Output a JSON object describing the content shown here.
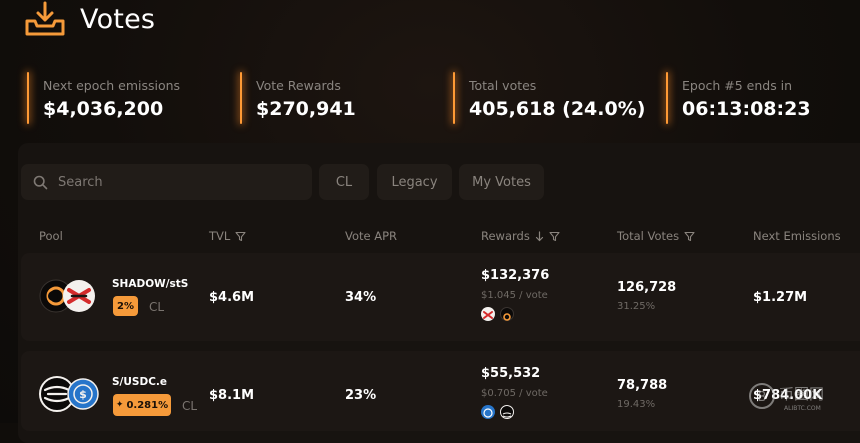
{
  "header": {
    "title": "Votes"
  },
  "stats": [
    {
      "label": "Next epoch emissions",
      "value": "$4,036,200"
    },
    {
      "label": "Vote Rewards",
      "value": "$270,941"
    },
    {
      "label": "Total votes",
      "value": "405,618 (24.0%)"
    },
    {
      "label": "Epoch #5 ends in",
      "value": "06:13:08:23"
    }
  ],
  "search": {
    "placeholder": "Search"
  },
  "filters": [
    "CL",
    "Legacy",
    "My Votes"
  ],
  "columns": {
    "pool": "Pool",
    "tvl": "TVL",
    "vote_apr": "Vote APR",
    "rewards": "Rewards",
    "total_votes": "Total Votes",
    "next_emissions": "Next Emissions"
  },
  "rows": [
    {
      "pool": "SHADOW/stS",
      "fee": "2%",
      "type": "CL",
      "tvl": "$4.6M",
      "apr": "34%",
      "rewards": "$132,376",
      "per_vote": "$1.045 / vote",
      "votes": "126,728",
      "votes_pct": "31.25%",
      "emissions": "$1.27M"
    },
    {
      "pool": "S/USDC.e",
      "fee": "0.281%",
      "type": "CL",
      "tvl": "$8.1M",
      "apr": "23%",
      "rewards": "$55,532",
      "per_vote": "$0.705 / vote",
      "votes": "78,788",
      "votes_pct": "19.43%",
      "emissions": "$784.00K"
    }
  ],
  "watermark": {
    "main": "币圈网",
    "sub": "ALIBTC.COM"
  },
  "colors": {
    "accent": "#f59a3a",
    "background": "#120e0b",
    "panel": "#171310"
  }
}
